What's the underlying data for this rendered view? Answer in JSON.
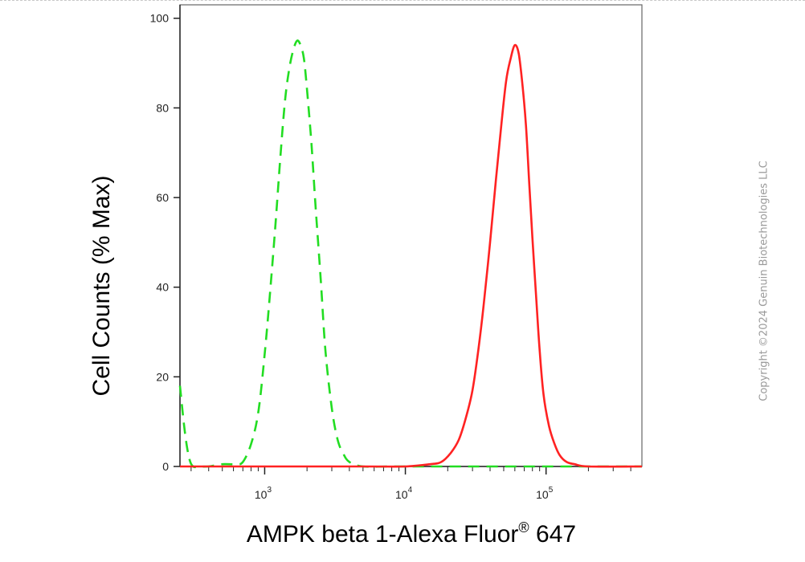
{
  "copyright": "Copyright ©2024 Genuin Biotechnologies LLC",
  "chart_data": {
    "type": "line",
    "xlabel": "AMPK beta 1-Alexa Fluor",
    "xlabel_sup": "®",
    "xlabel_suffix": " 647",
    "ylabel": "Cell Counts (% Max)",
    "x_scale": "log",
    "xlim": [
      250,
      480000
    ],
    "ylim": [
      0,
      103
    ],
    "grid": false,
    "y_ticks": [
      0,
      20,
      40,
      60,
      80,
      100
    ],
    "x_ticks": [
      {
        "value": 1000,
        "base": "10",
        "exp": "3"
      },
      {
        "value": 10000,
        "base": "10",
        "exp": "4"
      },
      {
        "value": 100000,
        "base": "10",
        "exp": "5"
      }
    ],
    "series": [
      {
        "color": "#22dd22",
        "style": "dashed",
        "x": [
          250,
          270,
          290,
          310,
          340,
          400,
          500,
          620,
          700,
          800,
          900,
          1000,
          1100,
          1200,
          1300,
          1400,
          1500,
          1600,
          1700,
          1800,
          1900,
          2000,
          2150,
          2300,
          2500,
          2700,
          3000,
          3300,
          3600,
          4000,
          5000,
          8000,
          20000,
          100000,
          480000
        ],
        "y": [
          18,
          8,
          2,
          0,
          0,
          0,
          0.5,
          0.5,
          1,
          5,
          12,
          25,
          40,
          55,
          70,
          82,
          89,
          93,
          95,
          94,
          91,
          84,
          72,
          58,
          42,
          26,
          13,
          6,
          3,
          1,
          0,
          0,
          0,
          0,
          0
        ]
      },
      {
        "color": "#ff2222",
        "style": "solid",
        "x": [
          250,
          5000,
          10000,
          15000,
          18000,
          21000,
          24000,
          27000,
          30000,
          33000,
          36000,
          40000,
          44000,
          48000,
          52000,
          56000,
          60000,
          64000,
          68000,
          72000,
          76000,
          80000,
          85000,
          90000,
          96000,
          105000,
          115000,
          125000,
          140000,
          160000,
          200000,
          480000
        ],
        "y": [
          0,
          0,
          0,
          0.5,
          1,
          3,
          6,
          11,
          17,
          26,
          36,
          50,
          64,
          76,
          86,
          91,
          94,
          92,
          85,
          76,
          63,
          51,
          38,
          26,
          16,
          9,
          5,
          2.5,
          1,
          0.5,
          0,
          0
        ]
      }
    ]
  }
}
